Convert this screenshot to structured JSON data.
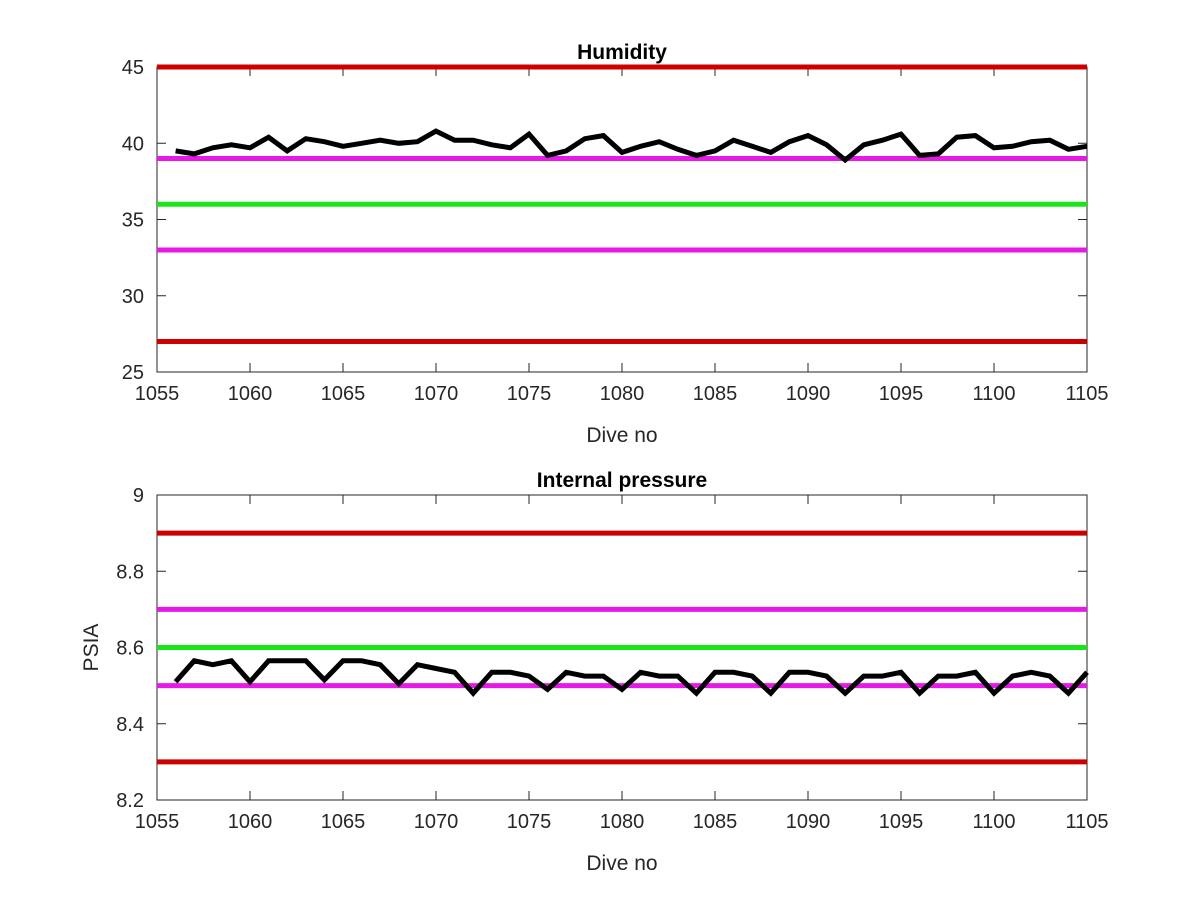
{
  "chart_data": [
    {
      "type": "line",
      "title": "Humidity",
      "xlabel": "Dive no",
      "ylabel": "",
      "xlim": [
        1055,
        1105
      ],
      "ylim": [
        25,
        45
      ],
      "xticks": [
        1055,
        1060,
        1065,
        1070,
        1075,
        1080,
        1085,
        1090,
        1095,
        1100,
        1105
      ],
      "yticks": [
        25,
        30,
        35,
        40,
        45
      ],
      "grid": false,
      "thresholds": [
        {
          "value": 45,
          "color": "#cc0000"
        },
        {
          "value": 39,
          "color": "#e619e6"
        },
        {
          "value": 36,
          "color": "#19e619"
        },
        {
          "value": 33,
          "color": "#e619e6"
        },
        {
          "value": 27,
          "color": "#cc0000"
        }
      ],
      "series": [
        {
          "color": "#000000",
          "x": [
            1056,
            1057,
            1058,
            1059,
            1060,
            1061,
            1062,
            1063,
            1064,
            1065,
            1066,
            1067,
            1068,
            1069,
            1070,
            1071,
            1072,
            1073,
            1074,
            1075,
            1076,
            1077,
            1078,
            1079,
            1080,
            1081,
            1082,
            1083,
            1084,
            1085,
            1086,
            1087,
            1088,
            1089,
            1090,
            1091,
            1092,
            1093,
            1094,
            1095,
            1096,
            1097,
            1098,
            1099,
            1100,
            1101,
            1102,
            1103,
            1104,
            1105
          ],
          "values": [
            39.5,
            39.3,
            39.7,
            39.9,
            39.7,
            40.4,
            39.5,
            40.3,
            40.1,
            39.8,
            40.0,
            40.2,
            40.0,
            40.1,
            40.8,
            40.2,
            40.2,
            39.9,
            39.7,
            40.6,
            39.2,
            39.5,
            40.3,
            40.5,
            39.4,
            39.8,
            40.1,
            39.6,
            39.2,
            39.5,
            40.2,
            39.8,
            39.4,
            40.1,
            40.5,
            39.9,
            38.9,
            39.9,
            40.2,
            40.6,
            39.2,
            39.3,
            40.4,
            40.5,
            39.7,
            39.8,
            40.1,
            40.2,
            39.6,
            39.8
          ]
        }
      ]
    },
    {
      "type": "line",
      "title": "Internal pressure",
      "xlabel": "Dive no",
      "ylabel": "PSIA",
      "xlim": [
        1055,
        1105
      ],
      "ylim": [
        8.2,
        9
      ],
      "xticks": [
        1055,
        1060,
        1065,
        1070,
        1075,
        1080,
        1085,
        1090,
        1095,
        1100,
        1105
      ],
      "yticks": [
        "8.2",
        "8.4",
        "8.6",
        "8.8",
        "9"
      ],
      "grid": false,
      "thresholds": [
        {
          "value": 8.9,
          "color": "#cc0000"
        },
        {
          "value": 8.7,
          "color": "#e619e6"
        },
        {
          "value": 8.6,
          "color": "#19e619"
        },
        {
          "value": 8.5,
          "color": "#e619e6"
        },
        {
          "value": 8.3,
          "color": "#cc0000"
        }
      ],
      "series": [
        {
          "color": "#000000",
          "x": [
            1056,
            1057,
            1058,
            1059,
            1060,
            1061,
            1062,
            1063,
            1064,
            1065,
            1066,
            1067,
            1068,
            1069,
            1070,
            1071,
            1072,
            1073,
            1074,
            1075,
            1076,
            1077,
            1078,
            1079,
            1080,
            1081,
            1082,
            1083,
            1084,
            1085,
            1086,
            1087,
            1088,
            1089,
            1090,
            1091,
            1092,
            1093,
            1094,
            1095,
            1096,
            1097,
            1098,
            1099,
            1100,
            1101,
            1102,
            1103,
            1104,
            1105
          ],
          "values": [
            8.51,
            8.565,
            8.555,
            8.565,
            8.51,
            8.565,
            8.565,
            8.565,
            8.515,
            8.565,
            8.565,
            8.555,
            8.505,
            8.555,
            8.545,
            8.535,
            8.48,
            8.535,
            8.535,
            8.525,
            8.49,
            8.535,
            8.525,
            8.525,
            8.49,
            8.535,
            8.525,
            8.525,
            8.48,
            8.535,
            8.535,
            8.525,
            8.48,
            8.535,
            8.535,
            8.525,
            8.48,
            8.525,
            8.525,
            8.535,
            8.48,
            8.525,
            8.525,
            8.535,
            8.48,
            8.525,
            8.535,
            8.525,
            8.48,
            8.535
          ]
        }
      ]
    }
  ]
}
